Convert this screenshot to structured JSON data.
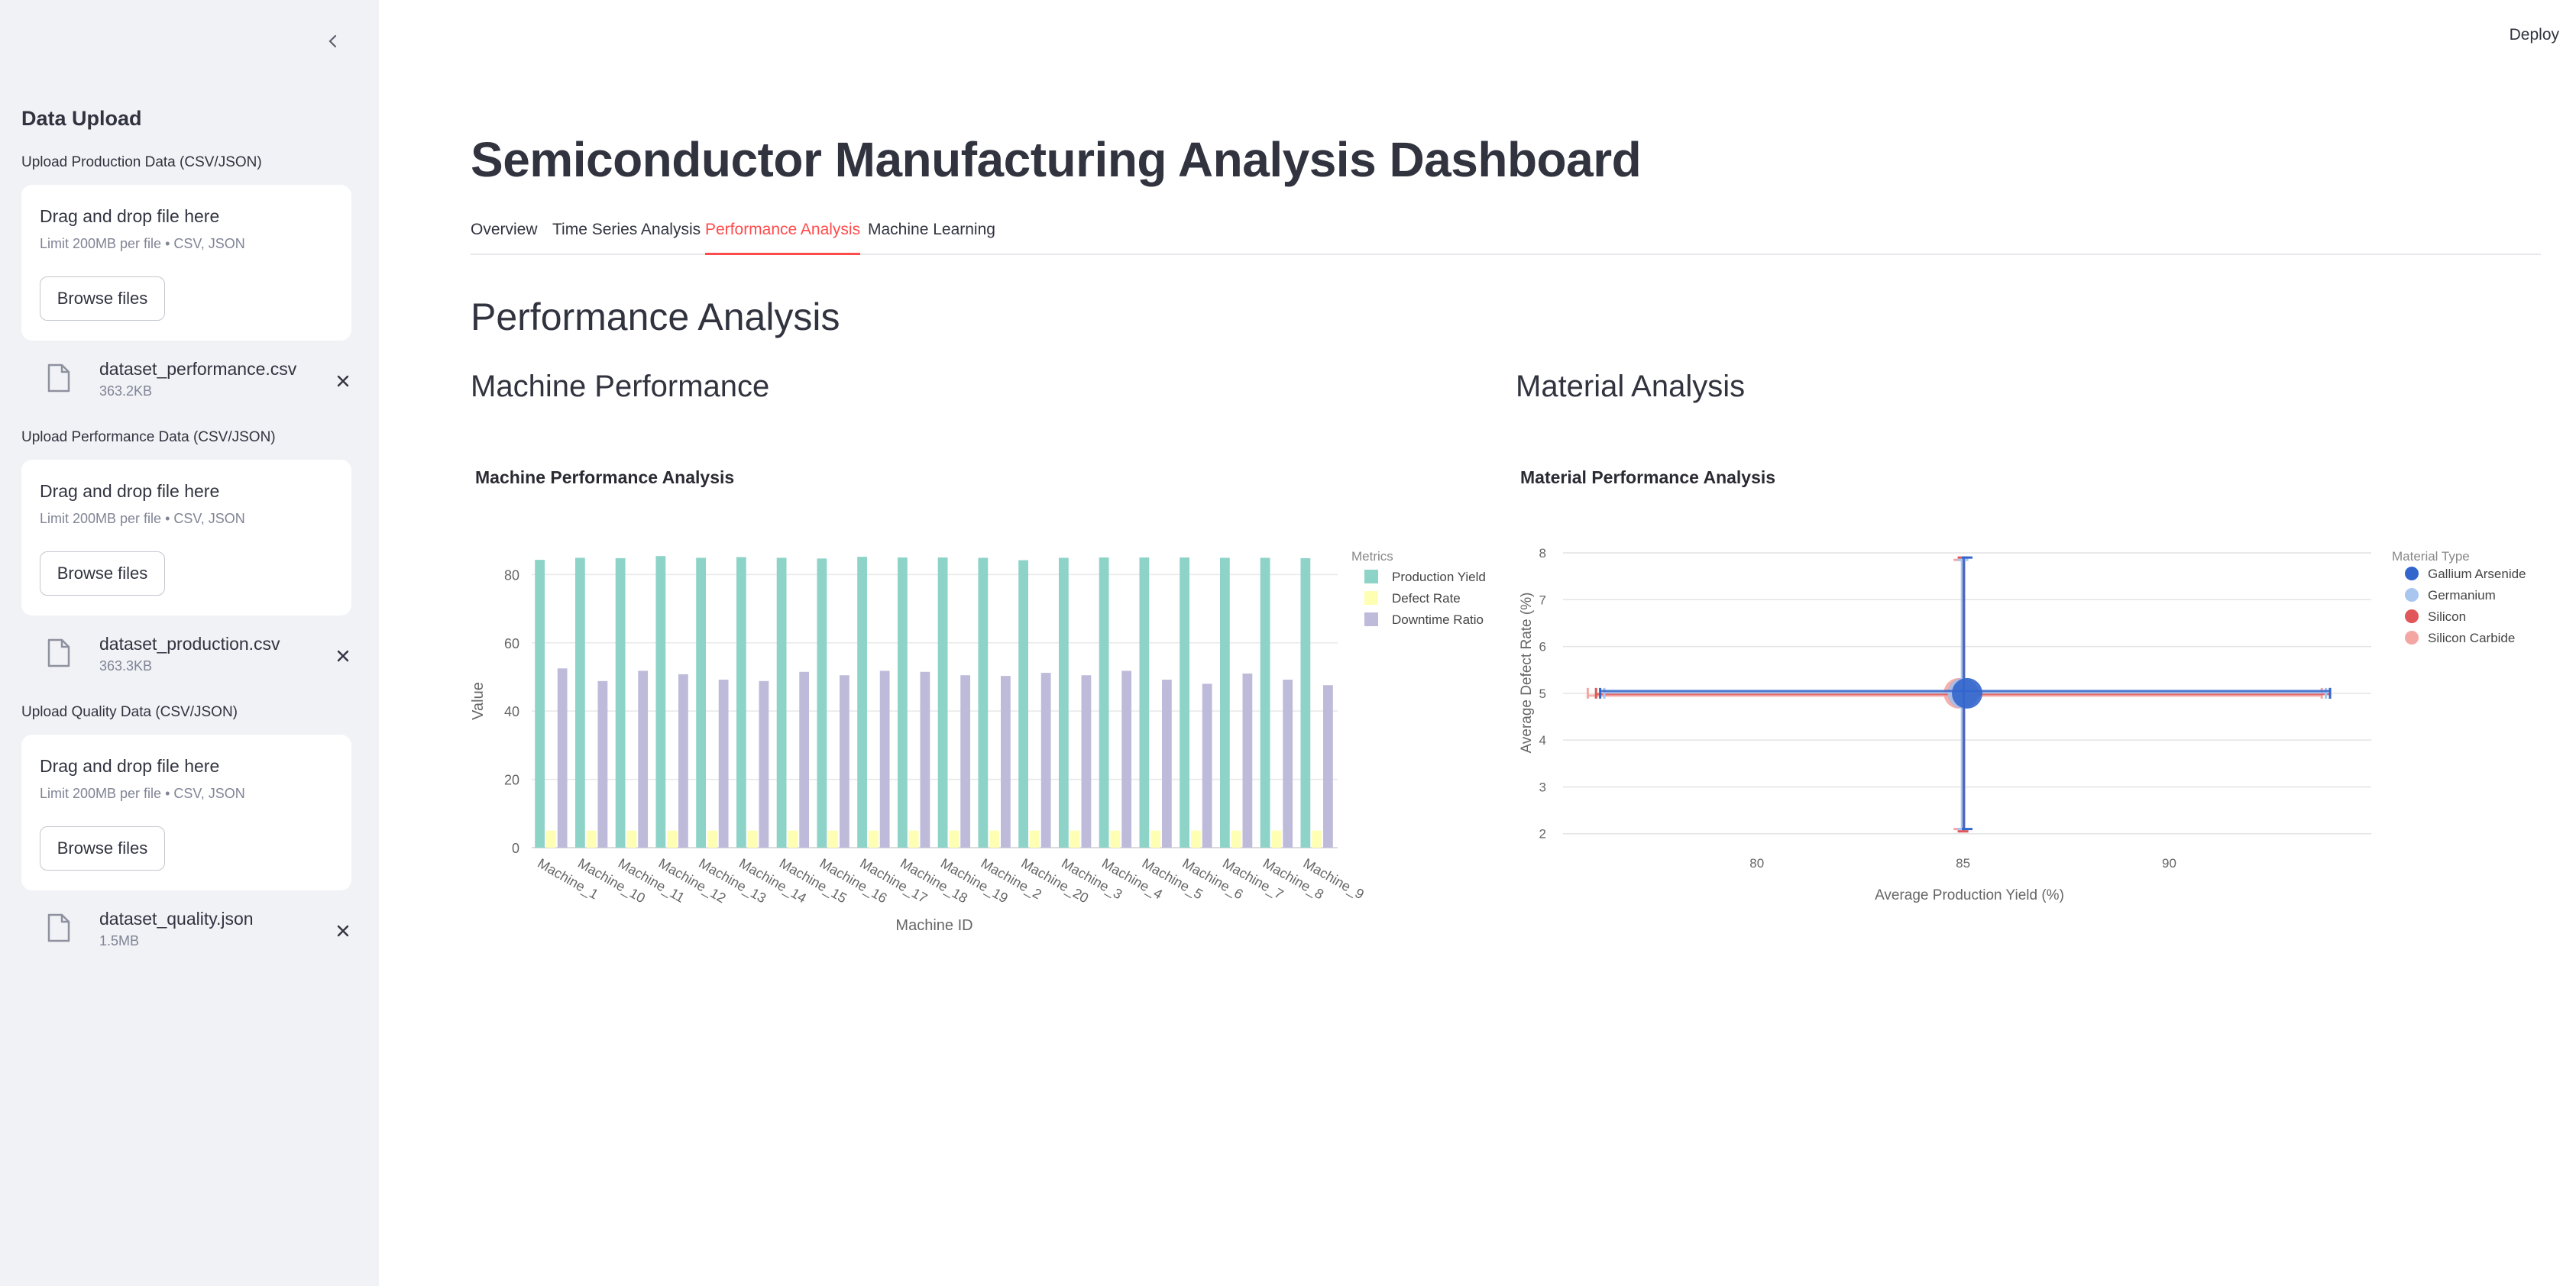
{
  "sidebar": {
    "title": "Data Upload",
    "uploads": [
      {
        "label": "Upload Production Data (CSV/JSON)",
        "drop_text": "Drag and drop file here",
        "limit_text": "Limit 200MB per file • CSV, JSON",
        "button": "Browse files",
        "file_name": "dataset_performance.csv",
        "file_size": "363.2KB"
      },
      {
        "label": "Upload Performance Data (CSV/JSON)",
        "drop_text": "Drag and drop file here",
        "limit_text": "Limit 200MB per file • CSV, JSON",
        "button": "Browse files",
        "file_name": "dataset_production.csv",
        "file_size": "363.3KB"
      },
      {
        "label": "Upload Quality Data (CSV/JSON)",
        "drop_text": "Drag and drop file here",
        "limit_text": "Limit 200MB per file • CSV, JSON",
        "button": "Browse files",
        "file_name": "dataset_quality.json",
        "file_size": "1.5MB"
      }
    ],
    "icons": {
      "collapse": "chevron-left-icon",
      "file": "file-icon",
      "remove": "close-icon"
    }
  },
  "header": {
    "deploy_label": "Deploy"
  },
  "main": {
    "title": "Semiconductor Manufacturing Analysis Dashboard",
    "tabs": [
      {
        "label": "Overview",
        "active": false
      },
      {
        "label": "Time Series Analysis",
        "active": false
      },
      {
        "label": "Performance Analysis",
        "active": true
      },
      {
        "label": "Machine Learning",
        "active": false
      }
    ],
    "section_title": "Performance Analysis",
    "left_subtitle": "Machine Performance",
    "right_subtitle": "Material Analysis"
  },
  "colors": {
    "accent": "#ff4b4b",
    "yield": "#8dd3c7",
    "defect": "#ffffb3",
    "downtime": "#bebada",
    "gaas": "#3366cc",
    "germanium": "#a9c6ef",
    "silicon": "#e15759",
    "sic": "#f4a6a3"
  },
  "chart_data": [
    {
      "type": "bar",
      "title": "Machine Performance Analysis",
      "xlabel": "Machine ID",
      "ylabel": "Value",
      "ylim": [
        0,
        85
      ],
      "yticks": [
        0,
        20,
        40,
        60,
        80
      ],
      "legend_title": "Metrics",
      "legend_position": "top-right",
      "categories": [
        "Machine_1",
        "Machine_10",
        "Machine_11",
        "Machine_12",
        "Machine_13",
        "Machine_14",
        "Machine_15",
        "Machine_16",
        "Machine_17",
        "Machine_18",
        "Machine_19",
        "Machine_2",
        "Machine_20",
        "Machine_3",
        "Machine_4",
        "Machine_5",
        "Machine_6",
        "Machine_7",
        "Machine_8",
        "Machine_9"
      ],
      "series": [
        {
          "name": "Production Yield",
          "values": [
            84.3,
            84.9,
            84.8,
            85.4,
            84.9,
            85.1,
            84.9,
            84.7,
            85.2,
            85.0,
            85.0,
            84.9,
            84.2,
            84.9,
            85.0,
            85.0,
            85.0,
            84.9,
            84.9,
            84.8
          ]
        },
        {
          "name": "Defect Rate",
          "values": [
            5.0,
            5.0,
            5.0,
            5.0,
            5.0,
            5.0,
            5.0,
            5.0,
            5.0,
            5.0,
            5.0,
            5.0,
            5.0,
            5.0,
            5.0,
            5.0,
            5.0,
            5.0,
            5.0,
            5.0
          ]
        },
        {
          "name": "Downtime Ratio",
          "values": [
            52.5,
            48.8,
            51.8,
            50.8,
            49.2,
            48.8,
            51.5,
            50.5,
            51.8,
            51.5,
            50.5,
            50.3,
            51.2,
            50.5,
            51.8,
            49.2,
            48.0,
            51.0,
            49.2,
            47.6
          ]
        }
      ],
      "grid": true
    },
    {
      "type": "scatter",
      "title": "Material Performance Analysis",
      "xlabel": "Average Production Yield (%)",
      "ylabel": "Average Defect Rate (%)",
      "xlim": [
        75.3,
        94.9
      ],
      "ylim": [
        1.8,
        8.0
      ],
      "xticks": [
        80,
        85,
        90
      ],
      "yticks": [
        2,
        3,
        4,
        5,
        6,
        7,
        8
      ],
      "legend_title": "Material Type",
      "legend_position": "top-right",
      "error_bars": true,
      "grid": true,
      "series": [
        {
          "name": "Gallium Arsenide",
          "x": 85.1,
          "y": 5.0,
          "x_err": [
            76.2,
            93.9
          ],
          "y_err": [
            2.1,
            7.9
          ]
        },
        {
          "name": "Germanium",
          "x": 85.0,
          "y": 5.0,
          "x_err": [
            76.3,
            93.8
          ],
          "y_err": [
            2.1,
            7.85
          ]
        },
        {
          "name": "Silicon",
          "x": 85.0,
          "y": 5.0,
          "x_err": [
            76.1,
            93.9
          ],
          "y_err": [
            2.05,
            7.9
          ]
        },
        {
          "name": "Silicon Carbide",
          "x": 84.9,
          "y": 5.0,
          "x_err": [
            75.9,
            93.7
          ],
          "y_err": [
            2.1,
            7.85
          ]
        }
      ]
    }
  ]
}
